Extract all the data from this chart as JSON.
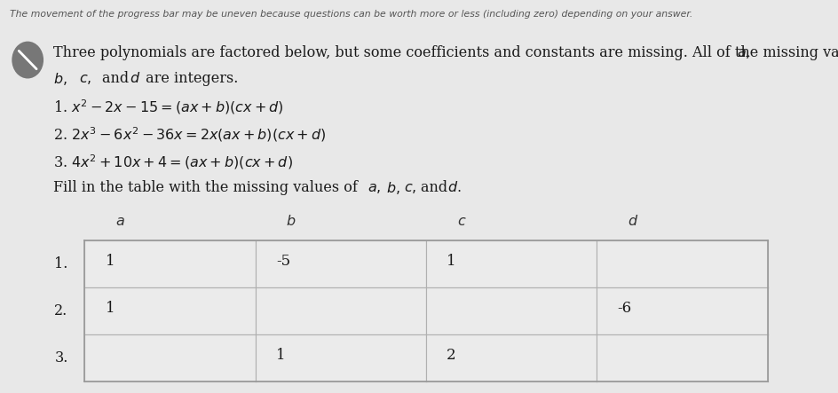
{
  "progress_bar_text": "The movement of the progress bar may be uneven because questions can be worth more or less (including zero) depending on your answer.",
  "col_headers": [
    "a",
    "b",
    "c",
    "d"
  ],
  "row_labels": [
    "1.",
    "2.",
    "3."
  ],
  "table_data": [
    [
      "1",
      "-5",
      "1",
      ""
    ],
    [
      "1",
      "",
      "",
      "-6"
    ],
    [
      "",
      "1",
      "2",
      ""
    ]
  ],
  "bg_color": "#e8e8e8",
  "cell_bg": "#ebebeb",
  "border_color": "#b0b0b0",
  "text_color": "#1a1a1a",
  "progress_text_color": "#555555"
}
